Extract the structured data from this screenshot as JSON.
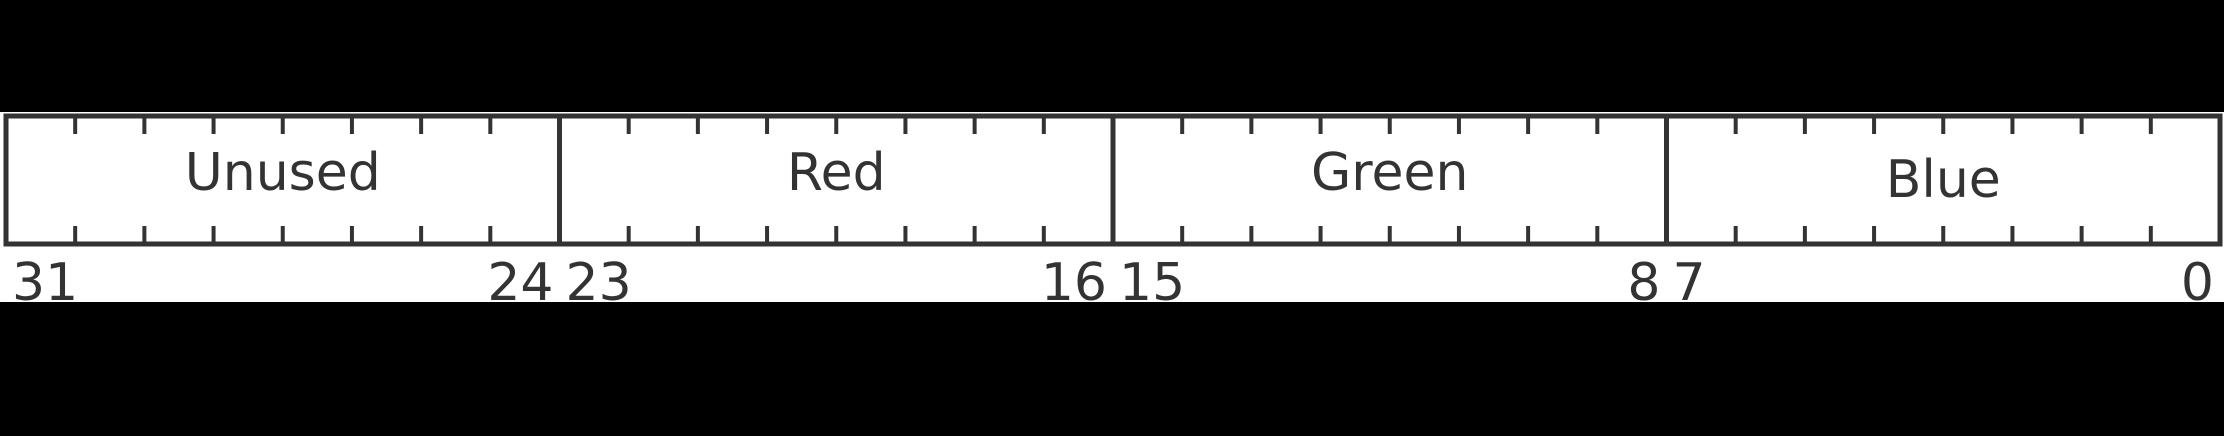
{
  "register": {
    "total_bits": 32,
    "bits_per_field": 8,
    "colors": {
      "background": "#000000",
      "panel": "#ffffff",
      "line": "#333333",
      "text": "#333333"
    },
    "fields": [
      {
        "name": "Unused",
        "high_bit": "31",
        "low_bit": "24"
      },
      {
        "name": "Red",
        "high_bit": "23",
        "low_bit": "16"
      },
      {
        "name": "Green",
        "high_bit": "15",
        "low_bit": "8"
      },
      {
        "name": "Blue",
        "high_bit": "7",
        "low_bit": "0"
      }
    ]
  }
}
